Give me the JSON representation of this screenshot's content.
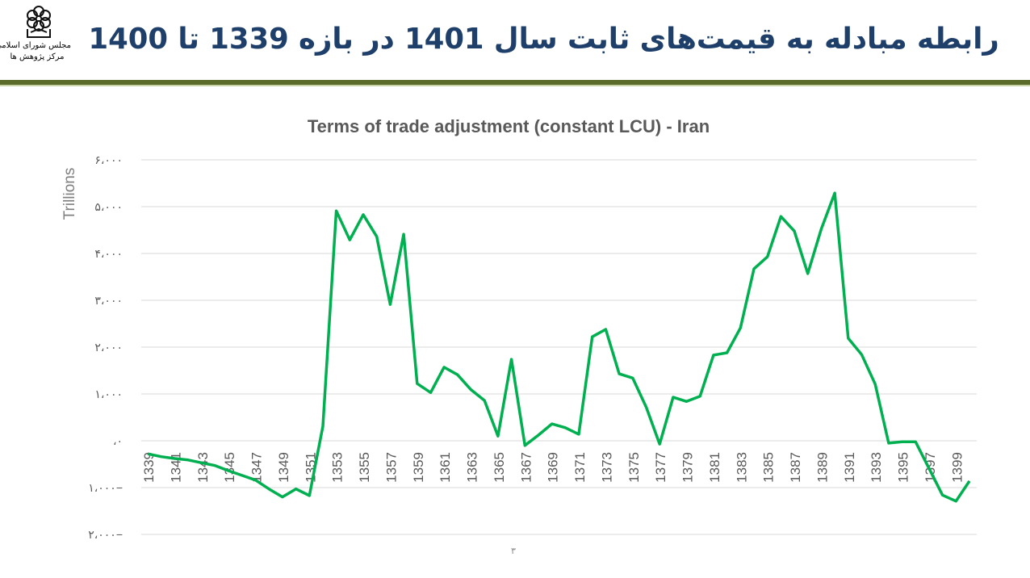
{
  "header": {
    "title": "رابطه مبادله به قیمت‌های ثابت سال 1401 در بازه 1339 تا 1400",
    "logo_text_line1": "مجلس شورای اسلامی",
    "logo_text_line2": "مرکز پژوهش ها"
  },
  "page_number": "۳",
  "colors": {
    "line": "#00b050",
    "title": "#1f3f6b",
    "rule": "#5a6b2a",
    "grid": "#d9d9d9"
  },
  "chart_data": {
    "type": "line",
    "title": "Terms of trade adjustment (constant LCU) - Iran",
    "xlabel": "",
    "ylabel": "Trillions",
    "ylim": [
      -2000,
      6000
    ],
    "grid": true,
    "legend": "none",
    "y_ticks": [
      6000,
      5000,
      4000,
      3000,
      2000,
      1000,
      0,
      -1000,
      -2000
    ],
    "y_tick_labels": [
      "۶،۰۰۰",
      "۵،۰۰۰",
      "۴،۰۰۰",
      "۳،۰۰۰",
      "۲،۰۰۰",
      "۱،۰۰۰",
      "،۰",
      "۱،۰۰۰−",
      "۲،۰۰۰−"
    ],
    "x": [
      1339,
      1340,
      1341,
      1342,
      1343,
      1344,
      1345,
      1346,
      1347,
      1348,
      1349,
      1350,
      1351,
      1352,
      1353,
      1354,
      1355,
      1356,
      1357,
      1358,
      1359,
      1360,
      1361,
      1362,
      1363,
      1364,
      1365,
      1366,
      1367,
      1368,
      1369,
      1370,
      1371,
      1372,
      1373,
      1374,
      1375,
      1376,
      1377,
      1378,
      1379,
      1380,
      1381,
      1382,
      1383,
      1384,
      1385,
      1386,
      1387,
      1388,
      1389,
      1390,
      1391,
      1392,
      1393,
      1394,
      1395,
      1396,
      1397,
      1398,
      1399,
      1400
    ],
    "x_tick_labels": [
      "1339",
      "1341",
      "1343",
      "1345",
      "1347",
      "1349",
      "1351",
      "1353",
      "1355",
      "1357",
      "1359",
      "1361",
      "1363",
      "1365",
      "1367",
      "1369",
      "1371",
      "1373",
      "1375",
      "1377",
      "1379",
      "1381",
      "1383",
      "1385",
      "1387",
      "1389",
      "1391",
      "1393",
      "1395",
      "1397",
      "1399"
    ],
    "series": [
      {
        "name": "Terms of trade adjustment",
        "values": [
          -280,
          -340,
          -380,
          -410,
          -470,
          -530,
          -640,
          -740,
          -840,
          -1030,
          -1200,
          -1030,
          -1170,
          310,
          4910,
          4290,
          4830,
          4360,
          2910,
          4410,
          1220,
          1030,
          1570,
          1410,
          1090,
          860,
          100,
          1740,
          -100,
          120,
          360,
          280,
          140,
          2220,
          2380,
          1430,
          1340,
          720,
          -70,
          930,
          840,
          950,
          1830,
          1880,
          2410,
          3670,
          3930,
          4790,
          4480,
          3570,
          4520,
          5290,
          2190,
          1840,
          1210,
          -50,
          -20,
          -20,
          -590,
          -1160,
          -1290,
          -860
        ]
      }
    ]
  }
}
